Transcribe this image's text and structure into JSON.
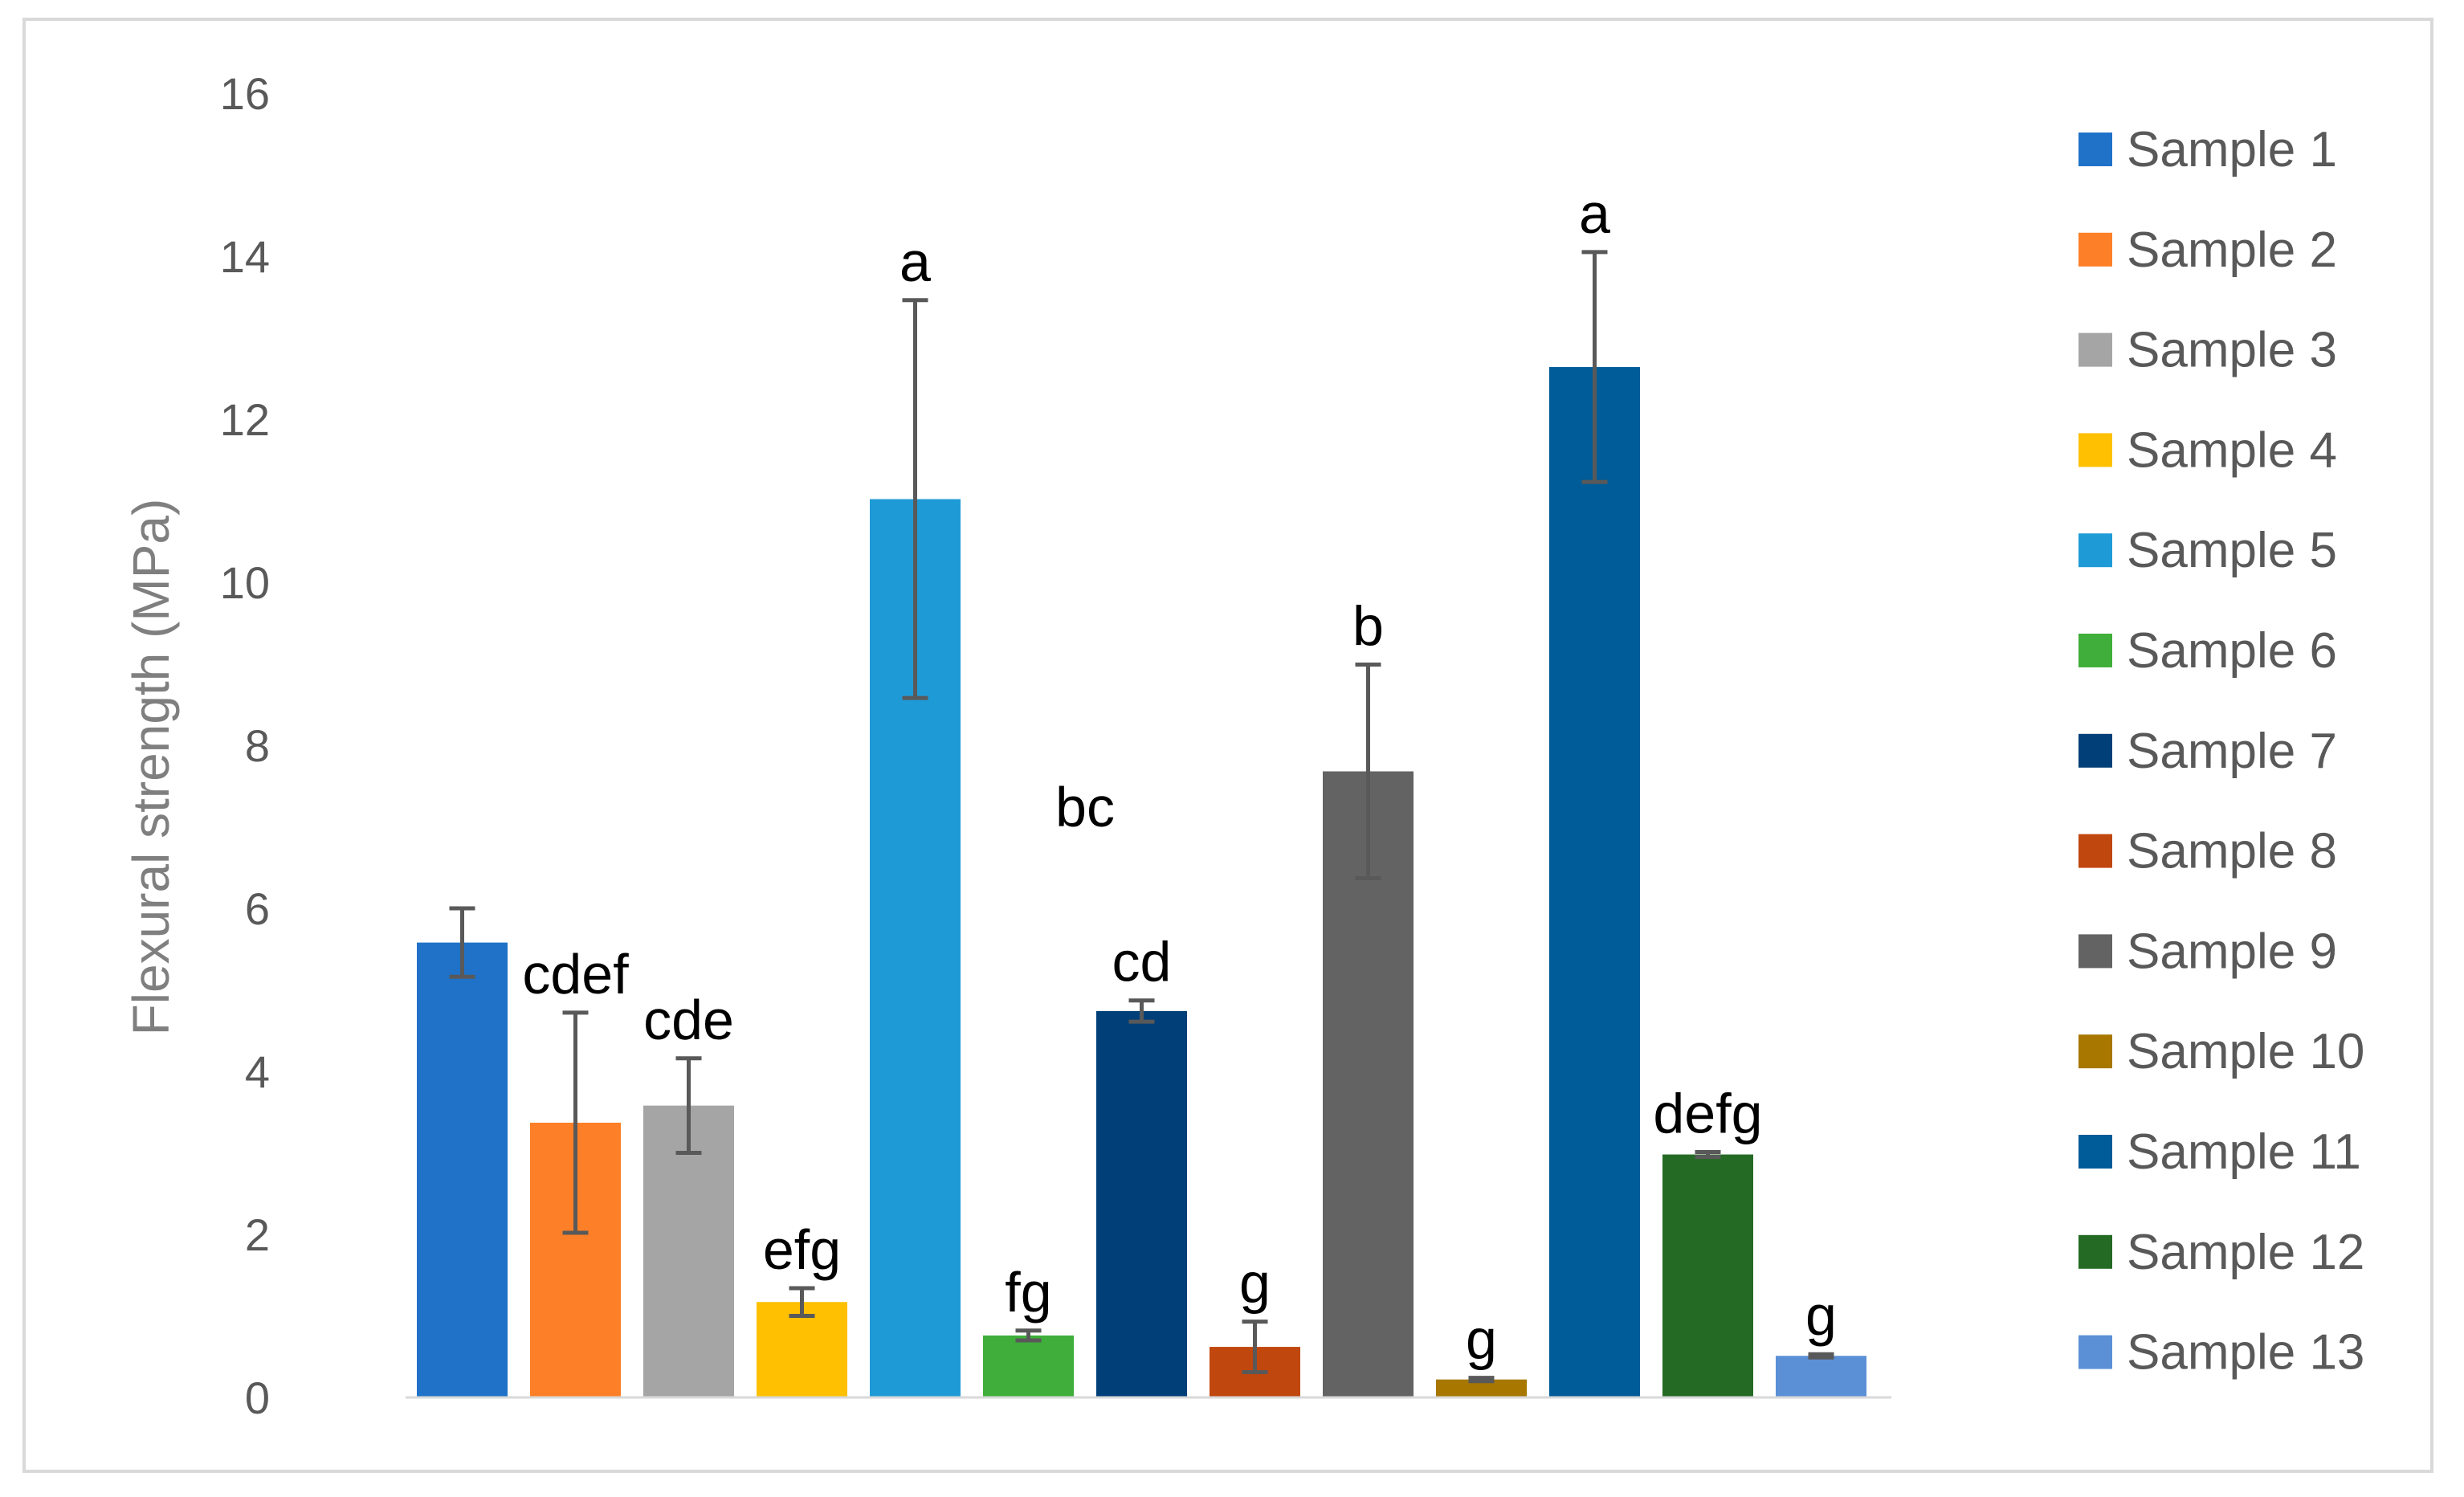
{
  "chart_data": {
    "type": "bar",
    "title": "",
    "xlabel": "",
    "ylabel": "Flexural strength (MPa)",
    "ylim": [
      0,
      16
    ],
    "yticks": [
      0,
      2,
      4,
      6,
      8,
      10,
      12,
      14,
      16
    ],
    "grid": false,
    "legend_position": "right",
    "categories": [
      "Sample 1",
      "Sample 2",
      "Sample 3",
      "Sample 4",
      "Sample 5",
      "Sample 6",
      "Sample 7",
      "Sample 8",
      "Sample 9",
      "Sample 10",
      "Sample 11",
      "Sample 12",
      "Sample 13"
    ],
    "values": [
      5.58,
      3.37,
      3.58,
      1.17,
      11.02,
      0.76,
      4.74,
      0.62,
      7.68,
      0.22,
      12.64,
      2.98,
      0.51
    ],
    "errors": [
      0.42,
      1.35,
      0.58,
      0.17,
      2.44,
      0.06,
      0.13,
      0.31,
      1.31,
      0.02,
      1.41,
      0.03,
      0.02
    ],
    "significance_labels": [
      "",
      "cdef",
      "cde",
      "efg",
      "a",
      "fg",
      "cd",
      "g",
      "b",
      "g",
      "a",
      "defg",
      "g"
    ],
    "extra_labels": [
      {
        "text": "bc",
        "x_between": [
          5,
          6
        ],
        "y": 7.2
      }
    ],
    "colors": [
      "#1f72c8",
      "#fd7f27",
      "#a5a5a5",
      "#fec000",
      "#1e9bd7",
      "#3fae3a",
      "#003f78",
      "#c0470e",
      "#636363",
      "#a77700",
      "#005c98",
      "#246a24",
      "#5b90d6"
    ]
  }
}
